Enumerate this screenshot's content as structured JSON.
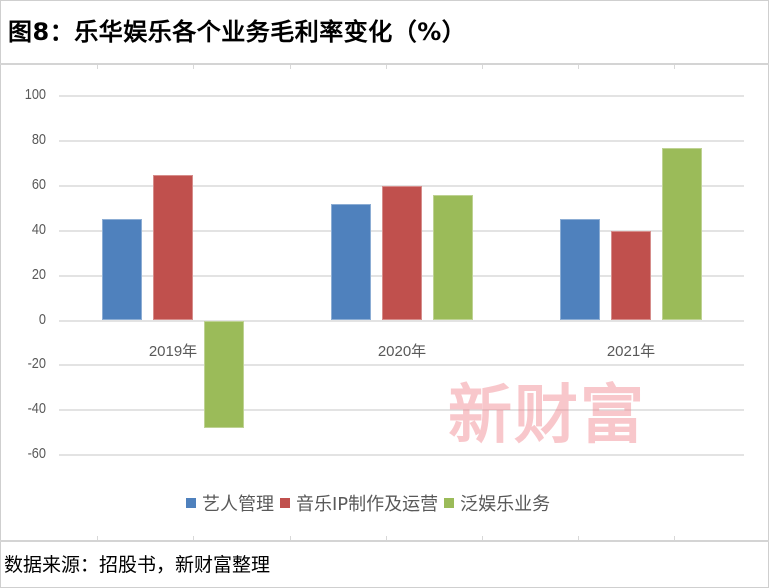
{
  "title": "图8：乐华娱乐各个业务毛利率变化（%）",
  "source": "数据来源：招股书，新财富整理",
  "watermark": "新财富",
  "colors": {
    "series_1": "#4f81bd",
    "series_2": "#c0504d",
    "series_3": "#9bbb59",
    "gridline": "#e3e3e3",
    "axis_text": "#595959"
  },
  "chart_data": {
    "type": "bar",
    "title": "图8：乐华娱乐各个业务毛利率变化（%）",
    "xlabel": "",
    "ylabel": "",
    "categories": [
      "2019年",
      "2020年",
      "2021年"
    ],
    "series": [
      {
        "name": "艺人管理",
        "color": "#4f81bd",
        "values": [
          45,
          52,
          45
        ]
      },
      {
        "name": "音乐IP制作及运营",
        "color": "#c0504d",
        "values": [
          65,
          60,
          40
        ]
      },
      {
        "name": "泛娱乐业务",
        "color": "#9bbb59",
        "values": [
          -48,
          56,
          77
        ]
      }
    ],
    "ylim": [
      -60,
      100
    ],
    "yticks": [
      "100",
      "80",
      "60",
      "40",
      "20",
      "0",
      "-20",
      "-40",
      "-60"
    ],
    "grid": true,
    "legend_position": "bottom"
  }
}
